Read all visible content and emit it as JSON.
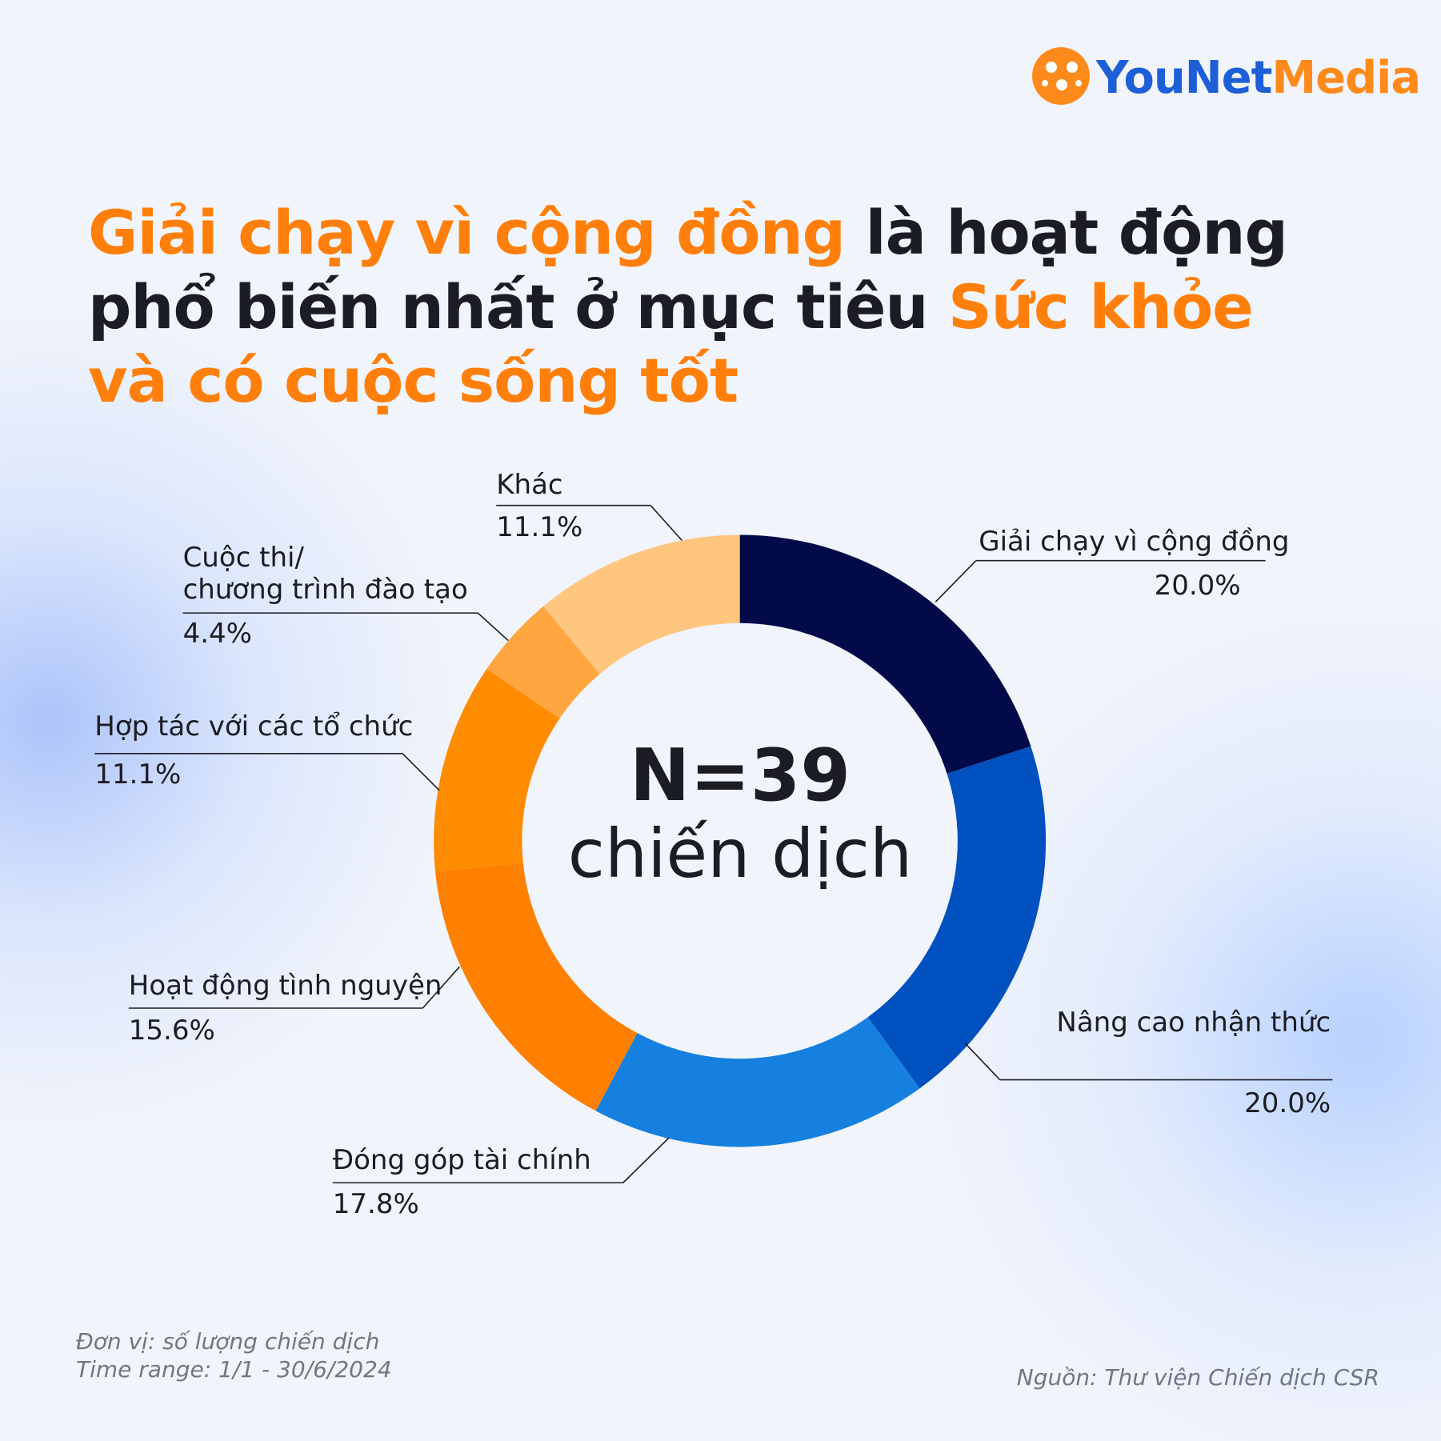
{
  "brand": [
    "YouNet",
    "Media"
  ],
  "chart_data": {
    "type": "donut",
    "title": [
      {
        "text": "Giải chạy vì cộng đồng",
        "color": "#ff7f0a"
      },
      {
        "text": " là hoạt động phổ biến nhất ở mục tiêu ",
        "color": "#1c1c24"
      },
      {
        "text": "Sức khỏe và có cuộc sống tốt",
        "color": "#ff7f0a"
      }
    ],
    "center_label": [
      "N=39",
      "chiến dịch"
    ],
    "categories": [
      "Giải chạy vì cộng đồng",
      "Nâng cao nhận thức",
      "Đóng góp tài chính",
      "Hoạt động tình nguyện",
      "Hợp tác với các tổ chức",
      "Cuộc thi/\nchương trình đào tạo",
      "Khác"
    ],
    "values": [
      20.0,
      20.0,
      17.8,
      15.6,
      11.1,
      4.4,
      11.1
    ],
    "value_labels": [
      "20.0%",
      "20.0%",
      "17.8%",
      "15.6%",
      "11.1%",
      "4.4%",
      "11.1%"
    ],
    "colors": [
      "#020a4a",
      "#0050c0",
      "#1580e0",
      "#ff7f00",
      "#ff8c00",
      "#ffa640",
      "#ffc680"
    ],
    "notes": [
      "Đơn vị: số lượng chiến dịch",
      "Time range: 1/1 - 30/6/2024"
    ],
    "source": "Nguồn: Thư viện Chiến dịch CSR"
  }
}
